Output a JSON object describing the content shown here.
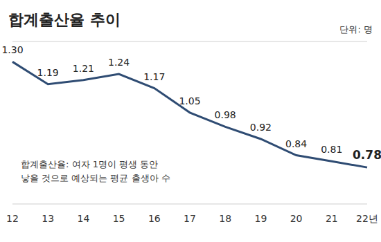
{
  "chart_data": {
    "type": "line",
    "title": "합계출산율 추이",
    "unit": "단위: 명",
    "annotation": [
      "합계출산율: 여자 1명이 평생 동안",
      "낳을 것으로 예상되는 평균 출생아 수"
    ],
    "categories": [
      "12",
      "13",
      "14",
      "15",
      "16",
      "17",
      "18",
      "19",
      "20",
      "21",
      "22년"
    ],
    "values": [
      1.3,
      1.19,
      1.21,
      1.24,
      1.17,
      1.05,
      0.98,
      0.92,
      0.84,
      0.81,
      0.78
    ],
    "value_labels": [
      "1.30",
      "1.19",
      "1.21",
      "1.24",
      "1.17",
      "1.05",
      "0.98",
      "0.92",
      "0.84",
      "0.81",
      "0.78"
    ],
    "color": "#2f4c73",
    "ylim": [
      0.6,
      1.4
    ],
    "yticks": [
      0.6,
      1,
      1.4
    ],
    "grid": true,
    "tick_labels": "x",
    "data_labels": true
  }
}
